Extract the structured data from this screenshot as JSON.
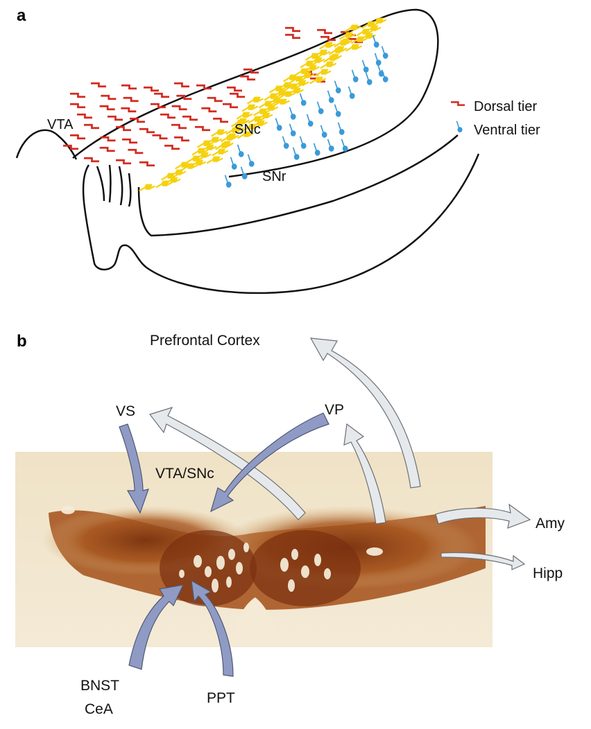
{
  "panel_a": {
    "letter": "a",
    "regions": {
      "vta": "VTA",
      "snc": "SNc",
      "snr": "SNr"
    },
    "legend": {
      "dorsal": "Dorsal tier",
      "ventral": "Ventral tier"
    },
    "colors": {
      "dorsal": "#d42a1f",
      "middle": "#f5d10e",
      "ventral": "#3a9ad9",
      "outline": "#111111"
    }
  },
  "panel_b": {
    "letter": "b",
    "labels": {
      "pfc": "Prefrontal Cortex",
      "vs": "VS",
      "vp": "VP",
      "vta_snc": "VTA/SNc",
      "amy": "Amy",
      "hipp": "Hipp",
      "bnst": "BNST",
      "cea": "CeA",
      "ppt": "PPT"
    },
    "colors": {
      "input_arrow": "#8f9bc4",
      "output_arrow": "#e6e9ec",
      "stain_dark": "#8a3e12",
      "stain_bg": "#f1e6d0"
    }
  }
}
